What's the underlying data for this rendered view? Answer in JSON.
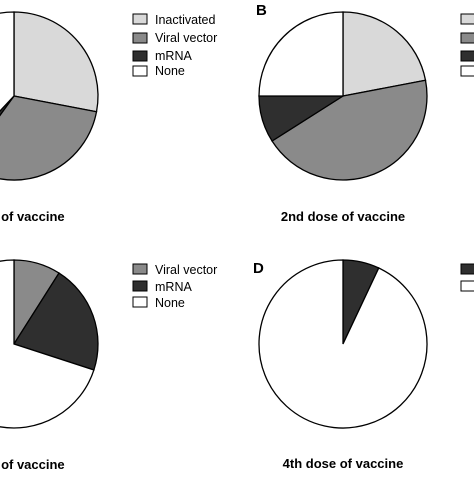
{
  "colors": {
    "Inactivated": "#d9d9d9",
    "Viral vector": "#8a8a8a",
    "mRNA": "#2f2f2f",
    "None": "#ffffff",
    "stroke": "#000000"
  },
  "chart_data": [
    {
      "type": "pie",
      "panel": "",
      "title": "se of vaccine",
      "categories": [
        "Inactivated",
        "Viral vector",
        "mRNA",
        "None"
      ],
      "values": [
        28,
        32,
        2,
        38
      ],
      "legend": [
        "Inactivated",
        "Viral vector",
        "mRNA",
        "None"
      ]
    },
    {
      "type": "pie",
      "panel": "B",
      "title": "2nd dose of vaccine",
      "categories": [
        "Inactivated",
        "Viral vector",
        "mRNA",
        "None"
      ],
      "values": [
        22,
        44,
        9,
        25
      ],
      "legend": []
    },
    {
      "type": "pie",
      "panel": "",
      "title": "se of vaccine",
      "categories": [
        "Viral vector",
        "mRNA",
        "None"
      ],
      "values": [
        9,
        21,
        70
      ],
      "legend": [
        "Viral vector",
        "mRNA",
        "None"
      ]
    },
    {
      "type": "pie",
      "panel": "D",
      "title": "4th dose of vaccine",
      "categories": [
        "mRNA",
        "None"
      ],
      "values": [
        7,
        93
      ],
      "legend": []
    }
  ]
}
